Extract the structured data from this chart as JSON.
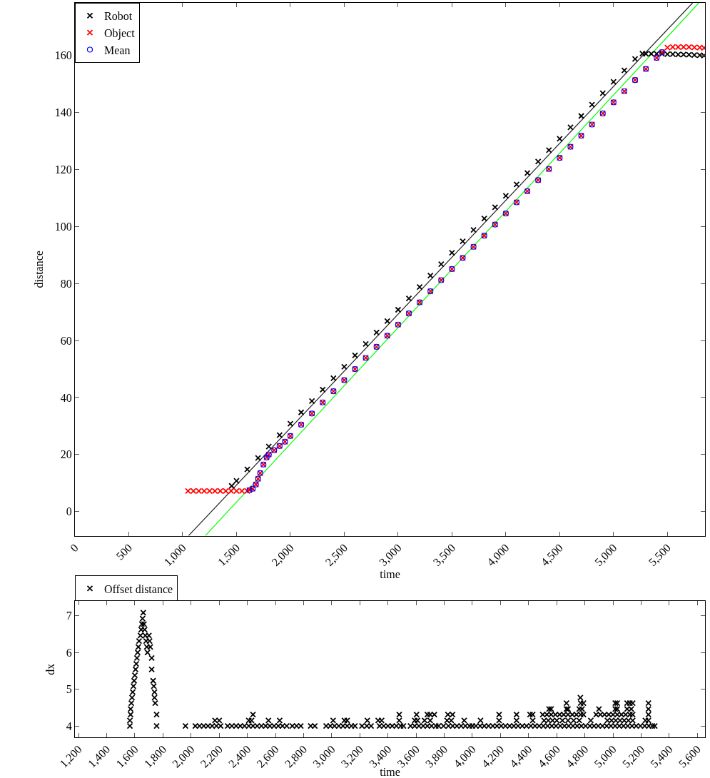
{
  "chart_data": [
    {
      "type": "scatter",
      "xlabel": "time",
      "ylabel": "distance",
      "legend": "top left",
      "grid": false,
      "xlim": [
        0,
        5850
      ],
      "ylim": [
        -8.5,
        178.5
      ],
      "xticks": [
        0,
        500,
        {
          "value": 1000,
          "label": "1,000"
        },
        {
          "value": 1500,
          "label": "1,500"
        },
        {
          "value": 2000,
          "label": "2,000"
        },
        {
          "value": 2500,
          "label": "2,500"
        },
        {
          "value": 3000,
          "label": "3,000"
        },
        {
          "value": 3500,
          "label": "3,500"
        },
        {
          "value": 4000,
          "label": "4,000"
        },
        {
          "value": 4500,
          "label": "4,500"
        },
        {
          "value": 5000,
          "label": "5,000"
        },
        {
          "value": 5500,
          "label": "5,500"
        }
      ],
      "yticks": [
        0,
        20,
        40,
        60,
        80,
        100,
        120,
        140,
        160
      ],
      "series": [
        {
          "name": "Robot",
          "color": "#000000",
          "marker": "cross",
          "x": [
            1455,
            1500,
            1600,
            1700,
            1800,
            1900,
            2000,
            2100,
            2200,
            2300,
            2400,
            2500,
            2600,
            2700,
            2800,
            2900,
            3000,
            3100,
            3200,
            3300,
            3400,
            3500,
            3600,
            3700,
            3800,
            3900,
            4000,
            4100,
            4200,
            4300,
            4400,
            4500,
            4600,
            4700,
            4800,
            4900,
            5000,
            5100,
            5200,
            5268,
            5300,
            5350,
            5400,
            5450,
            5500,
            5550,
            5600,
            5650,
            5700,
            5750,
            5800,
            5840
          ],
          "values": [
            9,
            10.8,
            14.8,
            18.8,
            22.8,
            26.8,
            30.8,
            34.8,
            38.8,
            42.8,
            46.8,
            50.8,
            54.8,
            58.8,
            62.8,
            66.8,
            70.8,
            74.8,
            78.8,
            82.8,
            86.8,
            90.8,
            94.8,
            98.8,
            102.8,
            106.8,
            110.8,
            114.8,
            118.8,
            122.8,
            126.8,
            130.8,
            134.8,
            138.8,
            142.8,
            146.8,
            150.8,
            154.8,
            158.8,
            160.7,
            160.6,
            160.6,
            160.6,
            160.6,
            160.5,
            160.5,
            160.4,
            160.4,
            160.3,
            160.2,
            160.1,
            160
          ]
        },
        {
          "name": "Object",
          "color": "#ff0000",
          "marker": "cross",
          "x": [
            1050,
            1100,
            1150,
            1200,
            1250,
            1300,
            1350,
            1400,
            1450,
            1500,
            1550,
            1600,
            1620,
            1650,
            1680,
            1700,
            1720,
            1750,
            1780,
            1800,
            1850,
            1900,
            1950,
            2000,
            2100,
            2200,
            2300,
            2400,
            2500,
            2600,
            2700,
            2800,
            2900,
            3000,
            3100,
            3200,
            3300,
            3400,
            3500,
            3600,
            3700,
            3800,
            3900,
            4000,
            4100,
            4200,
            4300,
            4400,
            4500,
            4600,
            4700,
            4800,
            4900,
            5000,
            5100,
            5200,
            5300,
            5400,
            5450,
            5500,
            5550,
            5600,
            5650,
            5700,
            5750,
            5800,
            5840
          ],
          "values": [
            7.2,
            7.2,
            7.2,
            7.2,
            7.2,
            7.2,
            7.2,
            7.2,
            7.2,
            7.2,
            7.2,
            7.2,
            7.5,
            8,
            9.5,
            11.5,
            13.5,
            16.5,
            19,
            20,
            21.5,
            23,
            24.5,
            26.5,
            30.5,
            34.4,
            38.3,
            42.2,
            46.1,
            50,
            53.9,
            57.8,
            61.7,
            65.6,
            69.5,
            73.4,
            77.3,
            81.2,
            85.1,
            89,
            92.9,
            96.8,
            100.7,
            104.6,
            108.5,
            112.4,
            116.3,
            120.2,
            124.1,
            128,
            131.9,
            135.8,
            139.7,
            143.6,
            147.5,
            151.4,
            155.3,
            159.2,
            161.2,
            162.8,
            163,
            163,
            163,
            163,
            162.9,
            162.8,
            162.7
          ]
        },
        {
          "name": "Mean",
          "color": "#0000ff",
          "marker": "circle",
          "x": [
            1620,
            1650,
            1680,
            1700,
            1720,
            1750,
            1780,
            1800,
            1850,
            1900,
            1950,
            2000,
            2100,
            2200,
            2300,
            2400,
            2500,
            2600,
            2700,
            2800,
            2900,
            3000,
            3100,
            3200,
            3300,
            3400,
            3500,
            3600,
            3700,
            3800,
            3900,
            4000,
            4100,
            4200,
            4300,
            4400,
            4500,
            4600,
            4700,
            4800,
            4900,
            5000,
            5100,
            5200,
            5300,
            5400,
            5450
          ],
          "values": [
            7.5,
            8,
            9.5,
            11.5,
            13.5,
            16.5,
            19,
            20,
            21.5,
            23,
            24.5,
            26.5,
            30.5,
            34.4,
            38.3,
            42.2,
            46.1,
            50,
            53.9,
            57.8,
            61.7,
            65.6,
            69.5,
            73.4,
            77.3,
            81.2,
            85.1,
            89,
            92.9,
            96.8,
            100.7,
            104.6,
            108.5,
            112.4,
            116.3,
            120.2,
            124.1,
            128,
            131.9,
            135.8,
            139.7,
            143.6,
            147.5,
            151.4,
            155.3,
            159.2,
            161.2
          ]
        },
        {
          "type": "line",
          "color": "#222222",
          "x": [
            1054,
            5734
          ],
          "values": [
            -8.5,
            178.5
          ]
        },
        {
          "type": "line",
          "color": "#00ff00",
          "x": [
            1210,
            5792
          ],
          "values": [
            -8.5,
            178.5
          ]
        }
      ]
    },
    {
      "type": "scatter",
      "xlabel": "time",
      "ylabel": "dx",
      "legend": "top left",
      "grid": false,
      "xlim": [
        1174,
        5655
      ],
      "ylim": [
        3.69,
        7.39
      ],
      "xticks": [
        {
          "value": 1200,
          "label": "1,200"
        },
        {
          "value": 1400,
          "label": "1,400"
        },
        {
          "value": 1600,
          "label": "1,600"
        },
        {
          "value": 1800,
          "label": "1,800"
        },
        {
          "value": 2000,
          "label": "2,000"
        },
        {
          "value": 2200,
          "label": "2,200"
        },
        {
          "value": 2400,
          "label": "2,400"
        },
        {
          "value": 2600,
          "label": "2,600"
        },
        {
          "value": 2800,
          "label": "2,800"
        },
        {
          "value": 3000,
          "label": "3,000"
        },
        {
          "value": 3200,
          "label": "3,200"
        },
        {
          "value": 3400,
          "label": "3,400"
        },
        {
          "value": 3600,
          "label": "3,600"
        },
        {
          "value": 3800,
          "label": "3,800"
        },
        {
          "value": 4000,
          "label": "4,000"
        },
        {
          "value": 4200,
          "label": "4,200"
        },
        {
          "value": 4400,
          "label": "4,400"
        },
        {
          "value": 4600,
          "label": "4,600"
        },
        {
          "value": 4800,
          "label": "4,800"
        },
        {
          "value": 5000,
          "label": "5,000"
        },
        {
          "value": 5200,
          "label": "5,200"
        },
        {
          "value": 5400,
          "label": "5,400"
        },
        {
          "value": 5600,
          "label": "5,600"
        }
      ],
      "yticks": [
        4,
        5,
        6,
        7
      ],
      "series": [
        {
          "name": "Offset distance",
          "color": "#000000",
          "marker": "cross",
          "x": [
            1565,
            1565,
            1570,
            1570,
            1575,
            1580,
            1585,
            1590,
            1595,
            1600,
            1605,
            1610,
            1615,
            1620,
            1625,
            1630,
            1640,
            1645,
            1650,
            1655,
            1660,
            1665,
            1670,
            1675,
            1680,
            1685,
            1690,
            1700,
            1705,
            1710,
            1720,
            1720,
            1730,
            1735,
            1740,
            1740,
            1745,
            1755,
            1755,
            1960,
            2030,
            2060,
            2090,
            2120,
            2150,
            2180,
            2210,
            2260,
            2290,
            2320,
            2350,
            2380,
            2410,
            2440,
            2470,
            2500,
            2530,
            2560,
            2590,
            2620,
            2650,
            2680,
            2720,
            2750,
            2780,
            2850,
            2880,
            2960,
            2990,
            3020,
            3050,
            3080,
            3110,
            3140,
            3165,
            3215,
            3250,
            3280,
            3340,
            3370,
            3400,
            3430,
            3460,
            3490,
            3510,
            3560,
            3590,
            3620,
            3650,
            3680,
            3710,
            3740,
            3760,
            3795,
            3830,
            3860,
            3890,
            3920,
            3950,
            3980,
            4000,
            4025,
            4055,
            4085,
            4115,
            4145,
            4175,
            4205,
            4235,
            4265,
            4295,
            4325,
            4355,
            4385,
            4415,
            4445,
            4475,
            4505,
            4535,
            4565,
            4595,
            4625,
            4655,
            4685,
            4715,
            4745,
            4775,
            4805,
            4835,
            4865,
            4895,
            4925,
            4955,
            4985,
            5015,
            5045,
            5075,
            5105,
            5135,
            5165,
            5195,
            5225,
            5255,
            5280,
            5297,
            2170,
            2200,
            2410,
            2430,
            2550,
            2630,
            3010,
            3090,
            3110,
            3253,
            3330,
            3355,
            3480,
            3590,
            3610,
            3660,
            3700,
            3820,
            3850,
            3942,
            4058,
            4190,
            4314,
            4429,
            4510,
            4540,
            4570,
            4600,
            4640,
            4680,
            4720,
            4760,
            4842,
            4960,
            4990,
            5020,
            5050,
            5080,
            5110,
            5140,
            5230,
            5252,
            2440,
            3480,
            3603,
            3680,
            3700,
            3730,
            3826,
            3859,
            4190,
            4314,
            4410,
            4429,
            4500,
            4530,
            4560,
            4590,
            4620,
            4650,
            4680,
            4710,
            4740,
            4770,
            4790,
            4880,
            4910,
            4940,
            4970,
            5000,
            5030,
            5060,
            5090,
            5120,
            5140,
            5252,
            4545,
            4560,
            4669,
            4680,
            4760,
            4780,
            4900,
            5016,
            5030,
            5100,
            5130,
            5252,
            4669,
            4770,
            4790,
            5016,
            5030,
            5100,
            5120,
            5140,
            5252,
            4768
          ],
          "values": [
            4,
            4.15,
            4.31,
            4.46,
            4.62,
            4.77,
            4.92,
            5.08,
            5.23,
            5.38,
            5.54,
            5.69,
            5.85,
            6,
            6.15,
            6.31,
            6.46,
            6.62,
            6.77,
            6.92,
            7.08,
            6.77,
            6.62,
            6.46,
            6.31,
            6.15,
            6,
            6.46,
            6.31,
            6.15,
            5.85,
            5.54,
            5.23,
            5.08,
            4.92,
            4.77,
            4.62,
            4.31,
            4,
            4,
            4,
            4,
            4,
            4,
            4,
            4,
            4,
            4,
            4,
            4,
            4,
            4,
            4,
            4,
            4,
            4,
            4,
            4,
            4,
            4,
            4,
            4,
            4,
            4,
            4,
            4,
            4,
            4,
            4,
            4,
            4,
            4,
            4,
            4,
            4,
            4,
            4,
            4,
            4,
            4,
            4,
            4,
            4,
            4,
            4,
            4,
            4,
            4,
            4,
            4,
            4,
            4,
            4,
            4,
            4,
            4,
            4,
            4,
            4,
            4,
            4,
            4,
            4,
            4,
            4,
            4,
            4,
            4,
            4,
            4,
            4,
            4,
            4,
            4,
            4,
            4,
            4,
            4,
            4,
            4,
            4,
            4,
            4,
            4,
            4,
            4,
            4,
            4,
            4,
            4,
            4,
            4,
            4,
            4,
            4,
            4,
            4,
            4,
            4,
            4,
            4,
            4,
            4,
            4,
            4,
            4.15,
            4.15,
            4.15,
            4.15,
            4.15,
            4.15,
            4.15,
            4.15,
            4.15,
            4.15,
            4.15,
            4.15,
            4.15,
            4.15,
            4.15,
            4.15,
            4.15,
            4.15,
            4.15,
            4.15,
            4.15,
            4.15,
            4.15,
            4.15,
            4.15,
            4.15,
            4.15,
            4.15,
            4.15,
            4.15,
            4.15,
            4.15,
            4.15,
            4.15,
            4.15,
            4.15,
            4.15,
            4.15,
            4.15,
            4.15,
            4.15,
            4.15,
            4.31,
            4.31,
            4.31,
            4.31,
            4.31,
            4.31,
            4.31,
            4.31,
            4.31,
            4.31,
            4.31,
            4.31,
            4.31,
            4.31,
            4.31,
            4.31,
            4.31,
            4.31,
            4.31,
            4.31,
            4.31,
            4.31,
            4.31,
            4.31,
            4.31,
            4.31,
            4.31,
            4.31,
            4.31,
            4.31,
            4.31,
            4.31,
            4.31,
            4.31,
            4.46,
            4.46,
            4.46,
            4.46,
            4.46,
            4.46,
            4.46,
            4.46,
            4.46,
            4.46,
            4.46,
            4.46,
            4.62,
            4.62,
            4.62,
            4.62,
            4.62,
            4.62,
            4.62,
            4.62,
            4.62,
            4.77
          ]
        }
      ]
    }
  ]
}
